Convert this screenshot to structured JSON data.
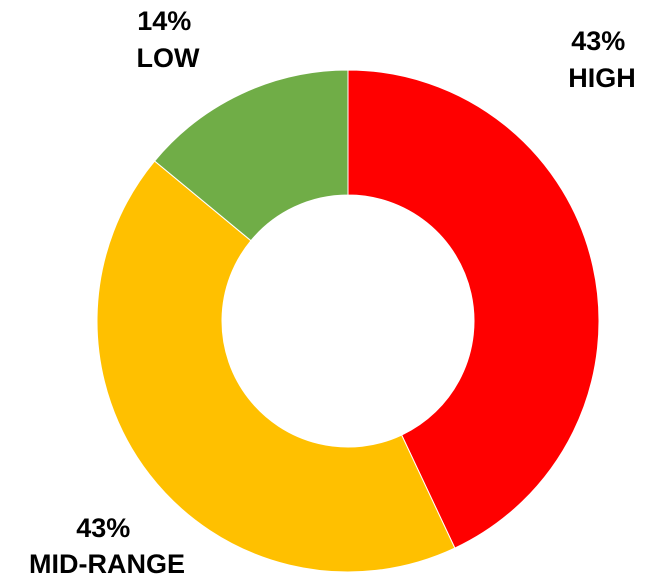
{
  "chart_data": {
    "type": "pie",
    "variant": "donut",
    "title": "",
    "slices": [
      {
        "category": "HIGH",
        "value": 43,
        "percent_label": "43%",
        "color": "#FF0000"
      },
      {
        "category": "MID-RANGE",
        "value": 43,
        "percent_label": "43%",
        "color": "#FFC000"
      },
      {
        "category": "LOW",
        "value": 14,
        "percent_label": "14%",
        "color": "#70AD47"
      }
    ],
    "start_angle_deg": 0,
    "direction": "clockwise",
    "legend": "none",
    "data_labels": "outside"
  }
}
